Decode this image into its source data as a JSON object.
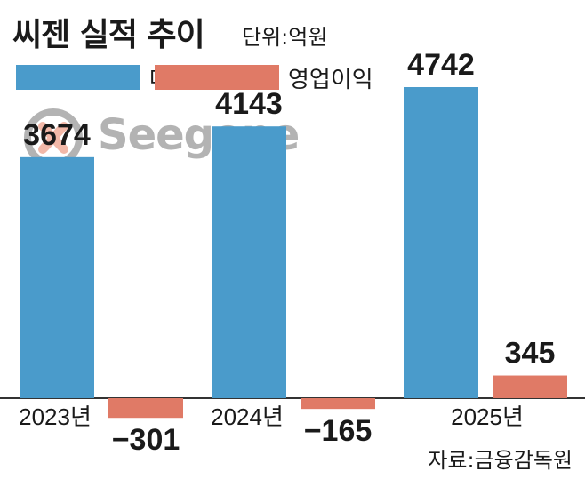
{
  "header": {
    "title": "씨젠 실적 추이",
    "unit": "단위:억원"
  },
  "logo": {
    "text": "Seegene",
    "icon": "dna-chromosome-logo"
  },
  "source": "자료:금융감독원",
  "colors": {
    "revenue": "#4a9bcb",
    "operating_profit": "#e07a66",
    "axis": "#333333",
    "logo_gray": "#b3b3b3",
    "logo_orange": "#f2b8a8"
  },
  "chart_data": {
    "type": "bar",
    "title": "씨젠 실적 추이",
    "unit": "단위:억원",
    "categories": [
      "2023년",
      "2024년",
      "2025년"
    ],
    "series": [
      {
        "name": "매출",
        "values": [
          3674,
          4143,
          4742
        ],
        "labels": [
          "3674",
          "4143",
          "4742"
        ]
      },
      {
        "name": "영업이익",
        "values": [
          -301,
          -165,
          345
        ],
        "labels": [
          "−301",
          "−165",
          "345"
        ]
      }
    ],
    "legend_position": "top-left",
    "grid": false
  }
}
